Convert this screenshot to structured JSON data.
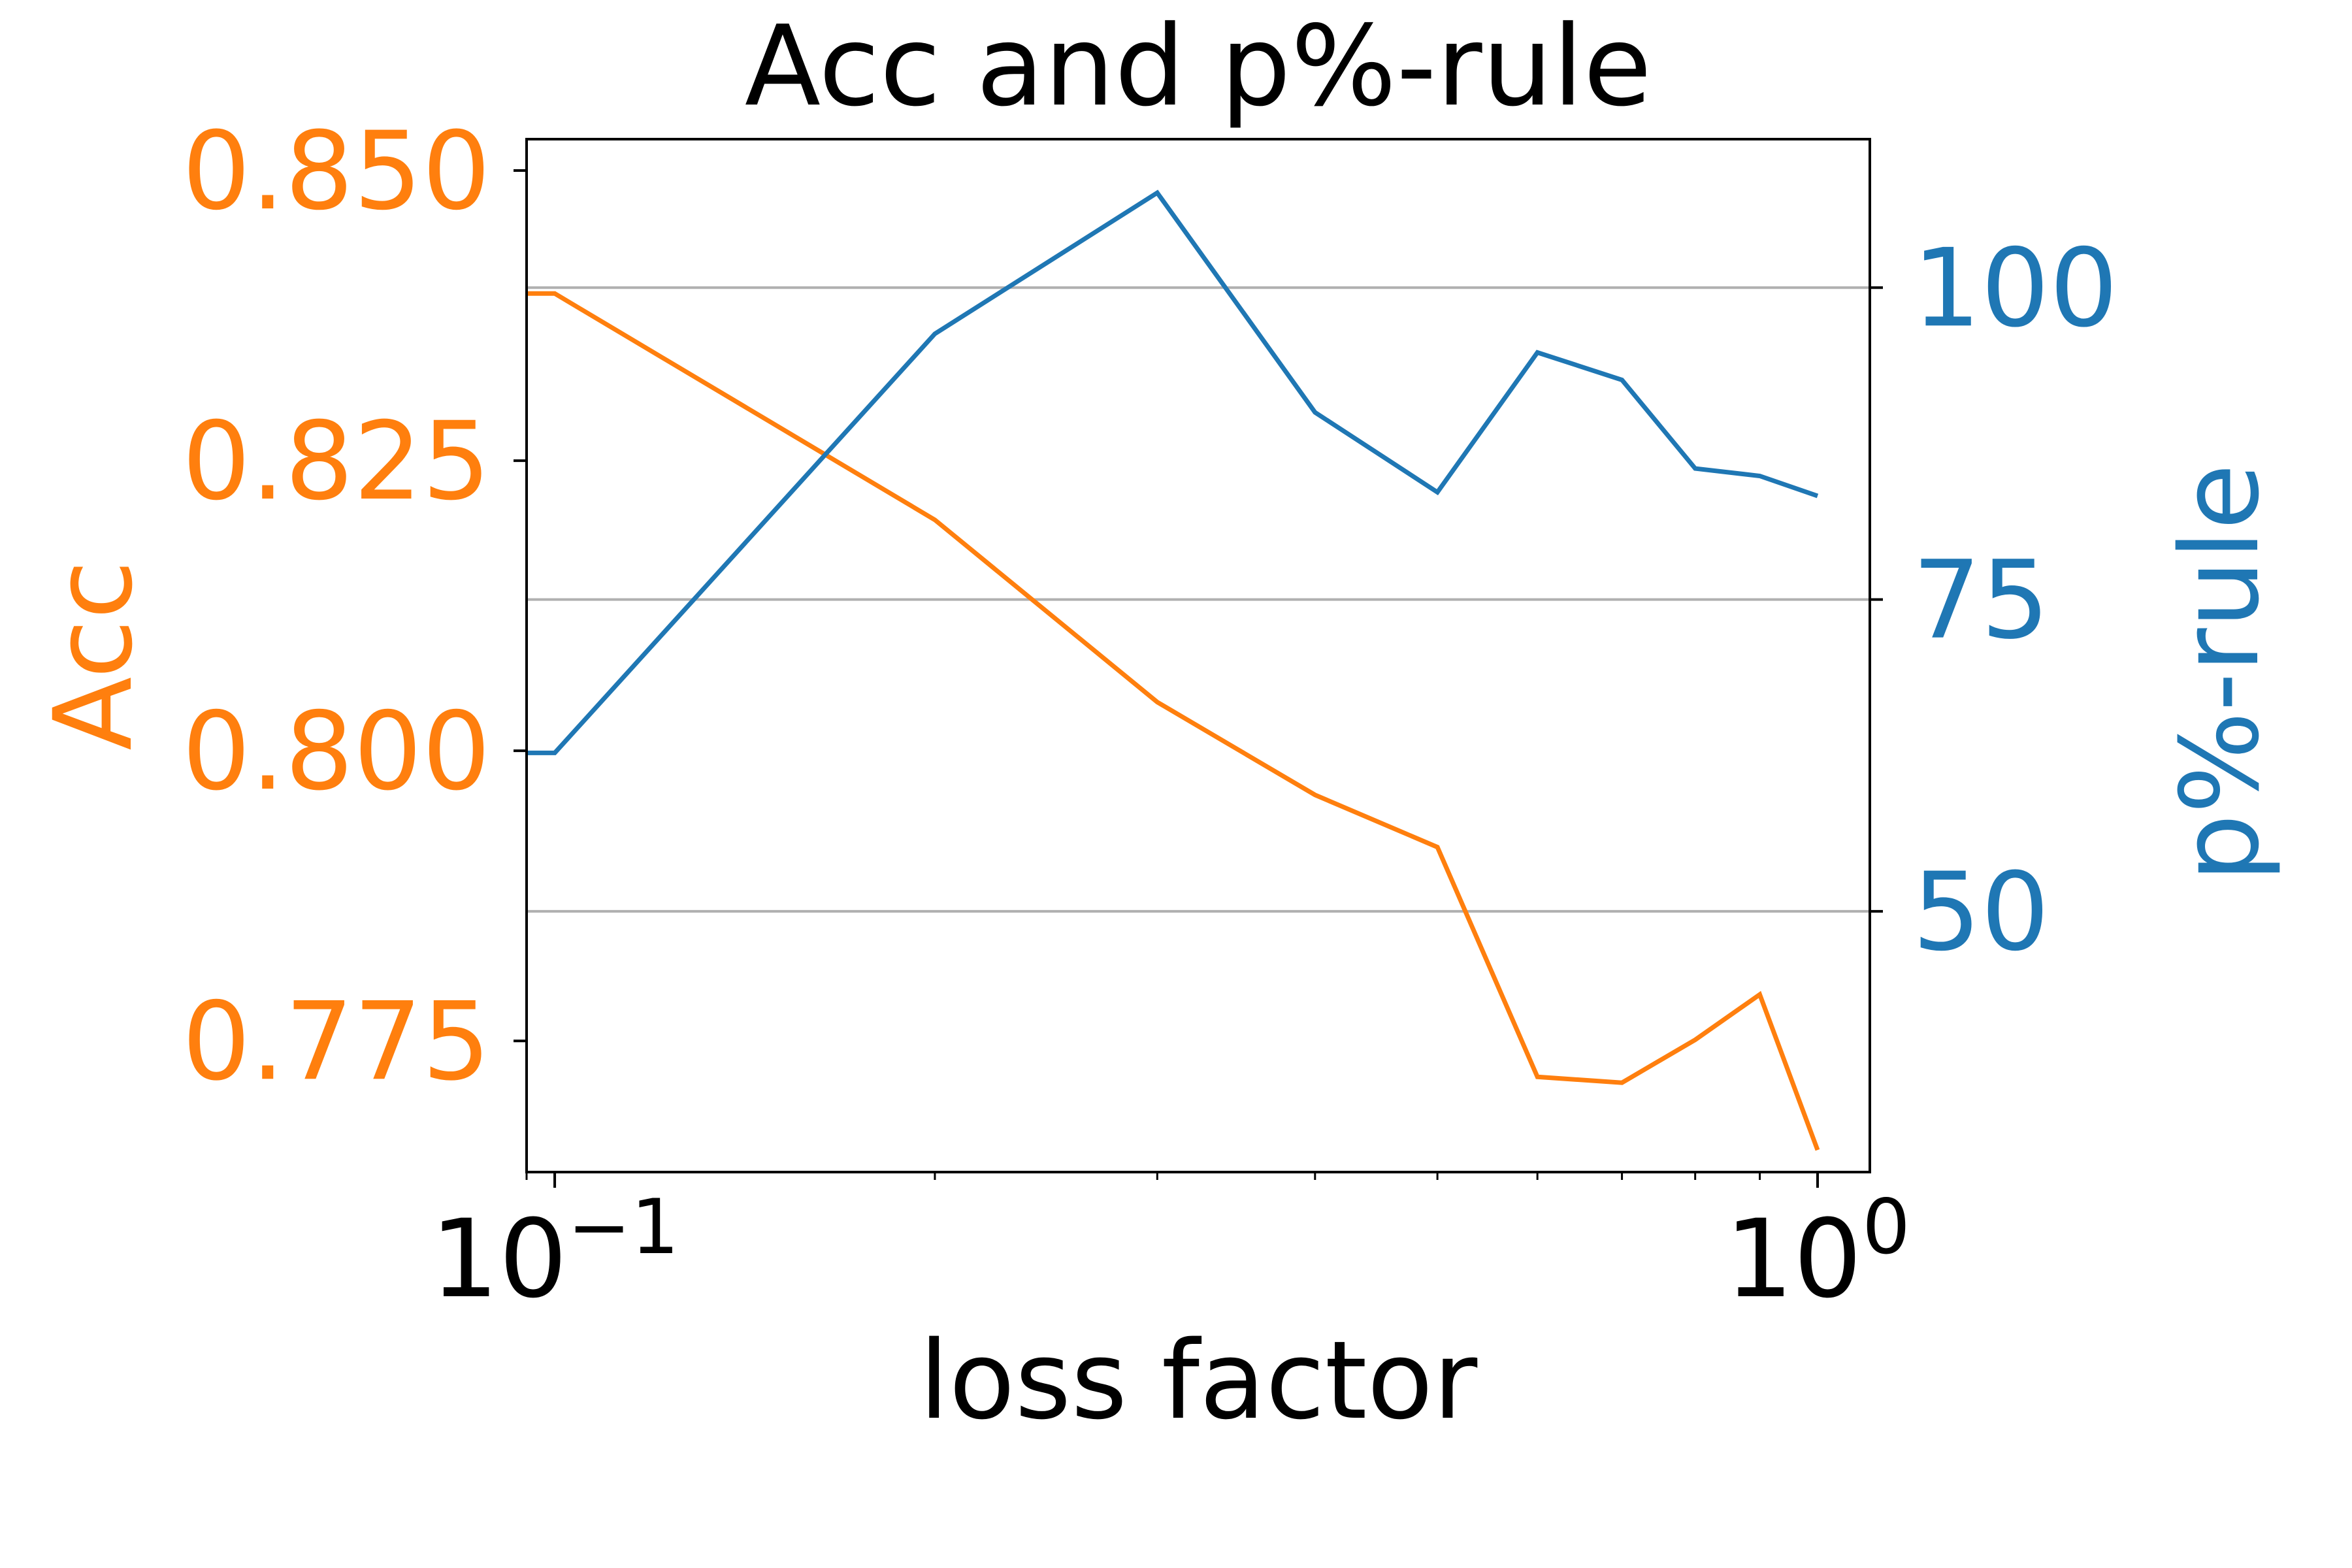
{
  "chart_data": {
    "type": "line",
    "title": "Acc and p%-rule",
    "xlabel": "loss factor",
    "xscale": "log",
    "xlim": [
      0.095,
      1.1
    ],
    "x_ticks": [
      {
        "value": 0.1,
        "base": "10",
        "exp": "−1"
      },
      {
        "value": 1.0,
        "base": "10",
        "exp": "0"
      }
    ],
    "x_minor_ticks": [
      0.2,
      0.3,
      0.4,
      0.5,
      0.6,
      0.7,
      0.8,
      0.9
    ],
    "grid": "horizontal (right axis)",
    "left_axis": {
      "label": "Acc",
      "color": "#ff7f0e",
      "ylim": [
        0.7637,
        0.8527
      ],
      "ticks": [
        0.775,
        0.8,
        0.825,
        0.85
      ],
      "tick_labels": [
        "0.775",
        "0.800",
        "0.825",
        "0.850"
      ]
    },
    "right_axis": {
      "label": "p%-rule",
      "color": "#1f77b4",
      "ylim": [
        29.1,
        111.9
      ],
      "ticks": [
        50,
        75,
        100
      ],
      "tick_labels": [
        "50",
        "75",
        "100"
      ]
    },
    "series": [
      {
        "axis": "left",
        "color": "#ff7f0e",
        "x": [
          0.095,
          0.1,
          0.2,
          0.3,
          0.4,
          0.5,
          0.6,
          0.7,
          0.8,
          0.9,
          1.0
        ],
        "values": [
          0.8394,
          0.8394,
          0.8199,
          0.8042,
          0.7962,
          0.7917,
          0.7719,
          0.7714,
          0.7751,
          0.779,
          0.7656
        ]
      },
      {
        "axis": "right",
        "color": "#1f77b4",
        "x": [
          0.095,
          0.1,
          0.2,
          0.3,
          0.4,
          0.5,
          0.6,
          0.7,
          0.8,
          0.9,
          1.0
        ],
        "values": [
          62.7,
          62.7,
          96.3,
          107.6,
          90.0,
          83.6,
          94.8,
          92.6,
          85.5,
          84.9,
          83.3
        ]
      }
    ]
  }
}
